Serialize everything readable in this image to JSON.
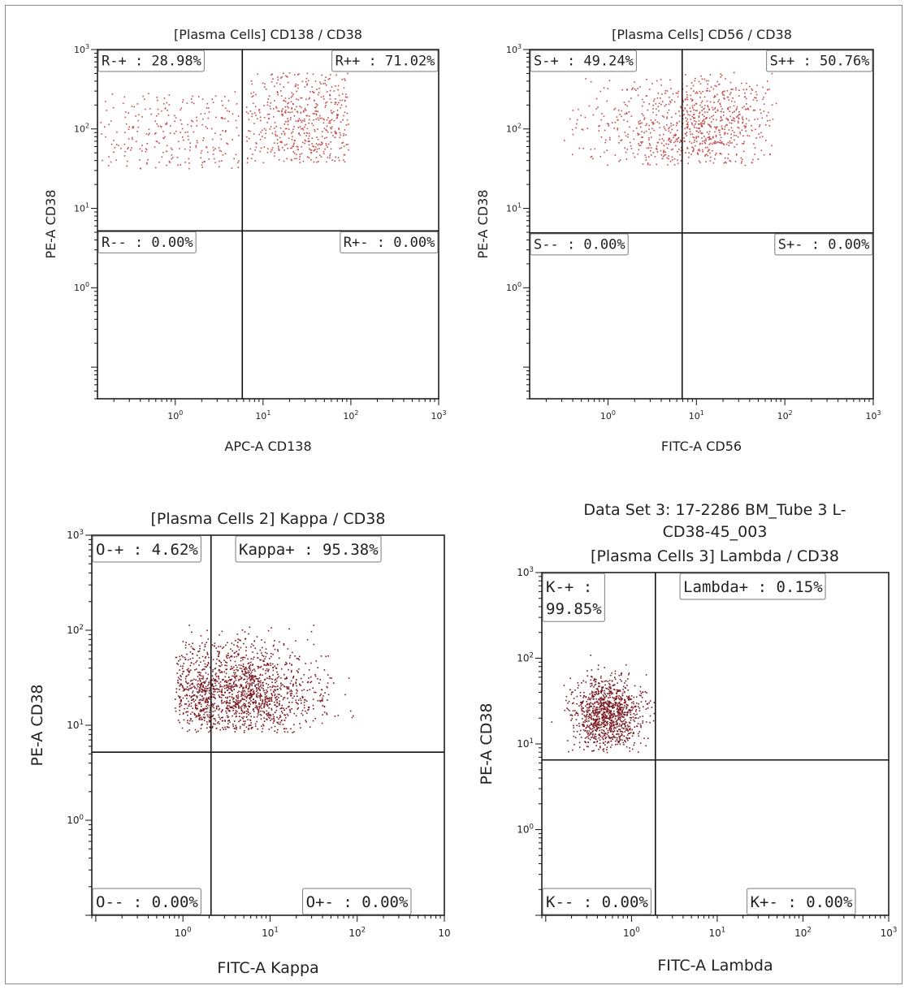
{
  "chart_data": [
    {
      "type": "scatter",
      "title_lines": [
        "[Plasma Cells] CD138 / CD38"
      ],
      "xlabel": "APC-A CD138",
      "ylabel": "PE-A CD38",
      "xscale": "log",
      "yscale": "log",
      "xlim": [
        0.13,
        1000
      ],
      "ylim": [
        0.04,
        1000
      ],
      "x_tick_values": [
        1,
        10,
        100,
        1000
      ],
      "y_tick_values": [
        1,
        10,
        100,
        1000
      ],
      "x_tick_labels": [
        {
          "base": "10",
          "exp": "0"
        },
        {
          "base": "10",
          "exp": "1"
        },
        {
          "base": "10",
          "exp": "2"
        },
        {
          "base": "10",
          "exp": "3"
        }
      ],
      "y_tick_labels": [
        {
          "base": "10",
          "exp": "0"
        },
        {
          "base": "10",
          "exp": "1"
        },
        {
          "base": "10",
          "exp": "2"
        },
        {
          "base": "10",
          "exp": "3"
        }
      ],
      "gate": {
        "x": 5.8,
        "y": 5.2
      },
      "quadrants": [
        {
          "label": "R-+ : 28.98%",
          "pos": "top-left"
        },
        {
          "label": "R++ : 71.02%",
          "pos": "top-right"
        },
        {
          "label": "R-- : 0.00%",
          "pos": "bottom-left"
        },
        {
          "label": "R+- : 0.00%",
          "pos": "bottom-right"
        }
      ],
      "point_color": "#c44a4a",
      "clusters": [
        {
          "n": 260,
          "cx": 1.2,
          "cy": 85,
          "sx": 0.95,
          "sy": 0.52,
          "xmin": 0.14,
          "xmax": 5.5,
          "ymin": 32,
          "ymax": 300
        },
        {
          "n": 520,
          "cx": 35,
          "cy": 105,
          "sx": 0.48,
          "sy": 0.45,
          "xmin": 6.2,
          "xmax": 95,
          "ymin": 38,
          "ymax": 520
        }
      ]
    },
    {
      "type": "scatter",
      "title_lines": [
        "[Plasma Cells] CD56 / CD38"
      ],
      "xlabel": "FITC-A CD56",
      "ylabel": "PE-A CD38",
      "xscale": "log",
      "yscale": "log",
      "xlim": [
        0.13,
        1000
      ],
      "ylim": [
        0.04,
        1000
      ],
      "x_tick_values": [
        1,
        10,
        100,
        1000
      ],
      "y_tick_values": [
        1,
        10,
        100,
        1000
      ],
      "x_tick_labels": [
        {
          "base": "10",
          "exp": "0"
        },
        {
          "base": "10",
          "exp": "1"
        },
        {
          "base": "10",
          "exp": "2"
        },
        {
          "base": "10",
          "exp": "3"
        }
      ],
      "y_tick_labels": [
        {
          "base": "10",
          "exp": "0"
        },
        {
          "base": "10",
          "exp": "1"
        },
        {
          "base": "10",
          "exp": "2"
        },
        {
          "base": "10",
          "exp": "3"
        }
      ],
      "gate": {
        "x": 6.9,
        "y": 4.9
      },
      "quadrants": [
        {
          "label": "S-+ : 49.24%",
          "pos": "top-left"
        },
        {
          "label": "S++ : 50.76%",
          "pos": "top-right"
        },
        {
          "label": "S-- : 0.00%",
          "pos": "bottom-left"
        },
        {
          "label": "S+- : 0.00%",
          "pos": "bottom-right"
        }
      ],
      "point_color": "#c44a4a",
      "clusters": [
        {
          "n": 700,
          "cx": 6.5,
          "cy": 95,
          "sx": 0.55,
          "sy": 0.35,
          "xmin": 0.3,
          "xmax": 70,
          "ymin": 35,
          "ymax": 500
        },
        {
          "n": 160,
          "cx": 25,
          "cy": 170,
          "sx": 0.4,
          "sy": 0.3,
          "xmin": 6.9,
          "xmax": 80,
          "ymin": 60,
          "ymax": 550
        }
      ]
    },
    {
      "type": "scatter",
      "title_lines": [
        "[Plasma Cells 2] Kappa / CD38"
      ],
      "xlabel": "FITC-A Kappa",
      "ylabel": "PE-A CD38",
      "xscale": "log",
      "yscale": "log",
      "xlim": [
        0.09,
        1000
      ],
      "ylim": [
        0.1,
        1000
      ],
      "x_tick_values": [
        1,
        10,
        100,
        1000
      ],
      "y_tick_values": [
        1,
        10,
        100,
        1000
      ],
      "x_tick_labels": [
        {
          "base": "10",
          "exp": "0"
        },
        {
          "base": "10",
          "exp": "1"
        },
        {
          "base": "10",
          "exp": "2"
        },
        {
          "base": "10",
          "exp": ""
        }
      ],
      "y_tick_labels": [
        {
          "base": "10",
          "exp": "0"
        },
        {
          "base": "10",
          "exp": "1"
        },
        {
          "base": "10",
          "exp": "2"
        },
        {
          "base": "10",
          "exp": "3"
        }
      ],
      "gate": {
        "x": 2.1,
        "y": 5.2
      },
      "quadrants": [
        {
          "label": "O-+ : 4.62%",
          "pos": "top-left"
        },
        {
          "label": "Kappa+ : 95.38%",
          "pos": "top-right-inner"
        },
        {
          "label": "O-- : 0.00%",
          "pos": "bottom-left"
        },
        {
          "label": "O+- : 0.00%",
          "pos": "bottom-right"
        }
      ],
      "point_color": "#7a1a22",
      "clusters": [
        {
          "n": 1500,
          "cx": 4.5,
          "cy": 22,
          "sx": 0.45,
          "sy": 0.28,
          "xmin": 0.8,
          "xmax": 180,
          "ymin": 8.5,
          "ymax": 115
        },
        {
          "n": 120,
          "cx": 1.5,
          "cy": 22,
          "sx": 0.25,
          "sy": 0.25,
          "xmin": 0.8,
          "xmax": 2.1,
          "ymin": 9,
          "ymax": 80
        }
      ]
    },
    {
      "type": "scatter",
      "title_lines": [
        "Data Set 3: 17-2286 BM_Tube 3 L-",
        "CD38-45_003",
        "[Plasma Cells 3] Lambda / CD38"
      ],
      "xlabel": "FITC-A Lambda",
      "ylabel": "PE-A CD38",
      "xscale": "log",
      "yscale": "log",
      "xlim": [
        0.09,
        1000
      ],
      "ylim": [
        0.1,
        1000
      ],
      "x_tick_values": [
        1,
        10,
        100,
        1000
      ],
      "y_tick_values": [
        1,
        10,
        100,
        1000
      ],
      "x_tick_labels": [
        {
          "base": "10",
          "exp": "0"
        },
        {
          "base": "10",
          "exp": "1"
        },
        {
          "base": "10",
          "exp": "2"
        },
        {
          "base": "10",
          "exp": "3"
        }
      ],
      "y_tick_labels": [
        {
          "base": "10",
          "exp": "0"
        },
        {
          "base": "10",
          "exp": "1"
        },
        {
          "base": "10",
          "exp": "2"
        },
        {
          "base": "10",
          "exp": "3"
        }
      ],
      "gate": {
        "x": 1.9,
        "y": 6.5
      },
      "quadrants": [
        {
          "label": "K-+ :",
          "label2": "99.85%",
          "pos": "top-left"
        },
        {
          "label": "Lambda+ : 0.15%",
          "pos": "top-right-inner"
        },
        {
          "label": "K-- : 0.00%",
          "pos": "bottom-left"
        },
        {
          "label": "K+- : 0.00%",
          "pos": "bottom-right"
        }
      ],
      "point_color": "#7a1a22",
      "clusters": [
        {
          "n": 1100,
          "cx": 0.5,
          "cy": 22,
          "sx": 0.2,
          "sy": 0.22,
          "xmin": 0.1,
          "xmax": 1.85,
          "ymin": 8,
          "ymax": 130
        }
      ]
    }
  ]
}
